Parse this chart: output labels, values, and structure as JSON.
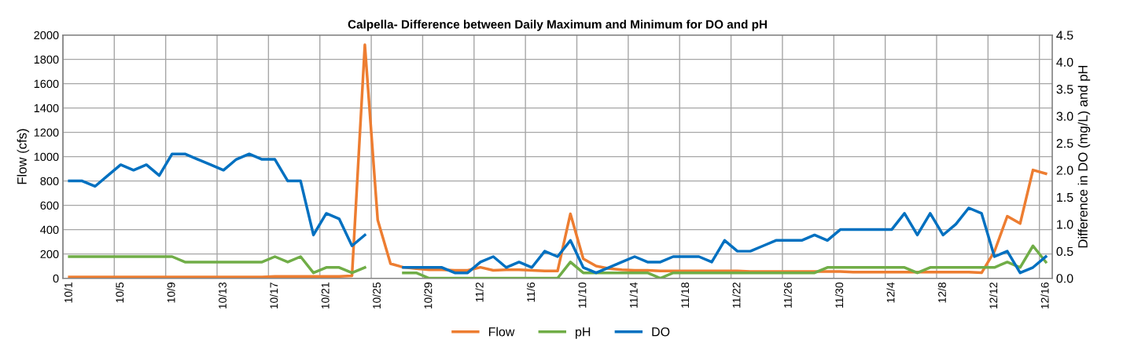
{
  "chart_data": {
    "type": "line",
    "title": "Calpella- Difference between Daily Maximum and Minimum for DO and pH",
    "xlabel": null,
    "ylabel": "Flow (cfs)",
    "y2label": "Difference in DO (mg/L) and pH",
    "categories": [
      "10/1",
      null,
      null,
      null,
      "10/5",
      null,
      null,
      null,
      "10/9",
      null,
      null,
      null,
      "10/13",
      null,
      null,
      null,
      "10/17",
      null,
      null,
      null,
      "10/21",
      null,
      null,
      null,
      "10/25",
      null,
      null,
      null,
      "10/29",
      null,
      null,
      null,
      "11/2",
      null,
      null,
      null,
      "11/6",
      null,
      null,
      null,
      "11/10",
      null,
      null,
      null,
      "11/14",
      null,
      null,
      null,
      "11/18",
      null,
      null,
      null,
      "11/22",
      null,
      null,
      null,
      "11/26",
      null,
      null,
      null,
      "11/30",
      null,
      null,
      null,
      "12/4",
      null,
      null,
      null,
      "12/8",
      null,
      null,
      null,
      "12/12",
      null,
      null,
      null,
      "12/16"
    ],
    "series": [
      {
        "name": "Flow",
        "color": "#ed7d31",
        "values": [
          10,
          10,
          10,
          10,
          10,
          10,
          10,
          10,
          10,
          10,
          10,
          10,
          10,
          10,
          10,
          10,
          15,
          15,
          15,
          15,
          15,
          15,
          20,
          1920,
          480,
          120,
          90,
          80,
          70,
          70,
          65,
          65,
          90,
          65,
          70,
          70,
          65,
          60,
          60,
          530,
          160,
          100,
          80,
          70,
          65,
          65,
          60,
          60,
          60,
          60,
          60,
          60,
          60,
          55,
          55,
          55,
          55,
          55,
          55,
          55,
          55,
          50,
          50,
          50,
          50,
          50,
          50,
          50,
          50,
          50,
          50,
          45,
          220,
          510,
          450,
          890,
          860
        ]
      },
      {
        "name": "pH",
        "color": "#70ad47",
        "axis": "y2",
        "values": [
          0.4,
          0.4,
          0.4,
          0.4,
          0.4,
          0.4,
          0.4,
          0.4,
          0.4,
          0.3,
          0.3,
          0.3,
          0.3,
          0.3,
          0.3,
          0.3,
          0.4,
          0.3,
          0.4,
          0.1,
          0.2,
          0.2,
          0.1,
          0.2,
          null,
          null,
          0.1,
          0.1,
          0,
          0,
          0,
          0,
          0,
          0,
          0,
          0,
          0,
          0,
          0,
          0.3,
          0.1,
          0.1,
          0.1,
          0.1,
          0.1,
          0.1,
          0,
          0.1,
          0.1,
          0.1,
          0.1,
          0.1,
          0.1,
          0.1,
          0.1,
          0.1,
          0.1,
          0.1,
          0.1,
          0.2,
          0.2,
          0.2,
          0.2,
          0.2,
          0.2,
          0.2,
          0.1,
          0.2,
          0.2,
          0.2,
          0.2,
          0.2,
          0.2,
          0.3,
          0.2,
          0.6,
          0.3
        ]
      },
      {
        "name": "DO",
        "color": "#0070c0",
        "axis": "y2",
        "values": [
          1.8,
          1.8,
          1.7,
          1.9,
          2.1,
          2.0,
          2.1,
          1.9,
          2.3,
          2.3,
          2.2,
          2.1,
          2.0,
          2.2,
          2.3,
          2.2,
          2.2,
          1.8,
          1.8,
          0.8,
          1.2,
          1.1,
          0.6,
          0.8,
          null,
          null,
          0.2,
          0.2,
          0.2,
          0.2,
          0.1,
          0.1,
          0.3,
          0.4,
          0.2,
          0.3,
          0.2,
          0.5,
          0.4,
          0.7,
          0.2,
          0.1,
          0.2,
          0.3,
          0.4,
          0.3,
          0.3,
          0.4,
          0.4,
          0.4,
          0.3,
          0.7,
          0.5,
          0.5,
          0.6,
          0.7,
          0.7,
          0.7,
          0.8,
          0.7,
          0.9,
          0.9,
          0.9,
          0.9,
          0.9,
          1.2,
          0.8,
          1.2,
          0.8,
          1.0,
          1.3,
          1.2,
          0.4,
          0.5,
          0.1,
          0.2,
          0.4
        ]
      }
    ],
    "ylim": [
      0,
      2000
    ],
    "yticks": [
      0,
      200,
      400,
      600,
      800,
      1000,
      1200,
      1400,
      1600,
      1800,
      2000
    ],
    "y2lim": [
      0,
      4.5
    ],
    "y2ticks": [
      {
        "value": 0,
        "label": "0.0"
      },
      {
        "value": 0.5,
        "label": "0.5"
      },
      {
        "value": 1,
        "label": "1.0"
      },
      {
        "value": 1.5,
        "label": "1.5"
      },
      {
        "value": 2,
        "label": "2.0"
      },
      {
        "value": 2.5,
        "label": "2.5"
      },
      {
        "value": 3,
        "label": "3.0"
      },
      {
        "value": 3.5,
        "label": "3.5"
      },
      {
        "value": 4,
        "label": "4.0"
      },
      {
        "value": 4.5,
        "label": "4.5"
      }
    ],
    "grid": true,
    "legend": "bottom",
    "marker": "none",
    "line_style": "solid"
  }
}
